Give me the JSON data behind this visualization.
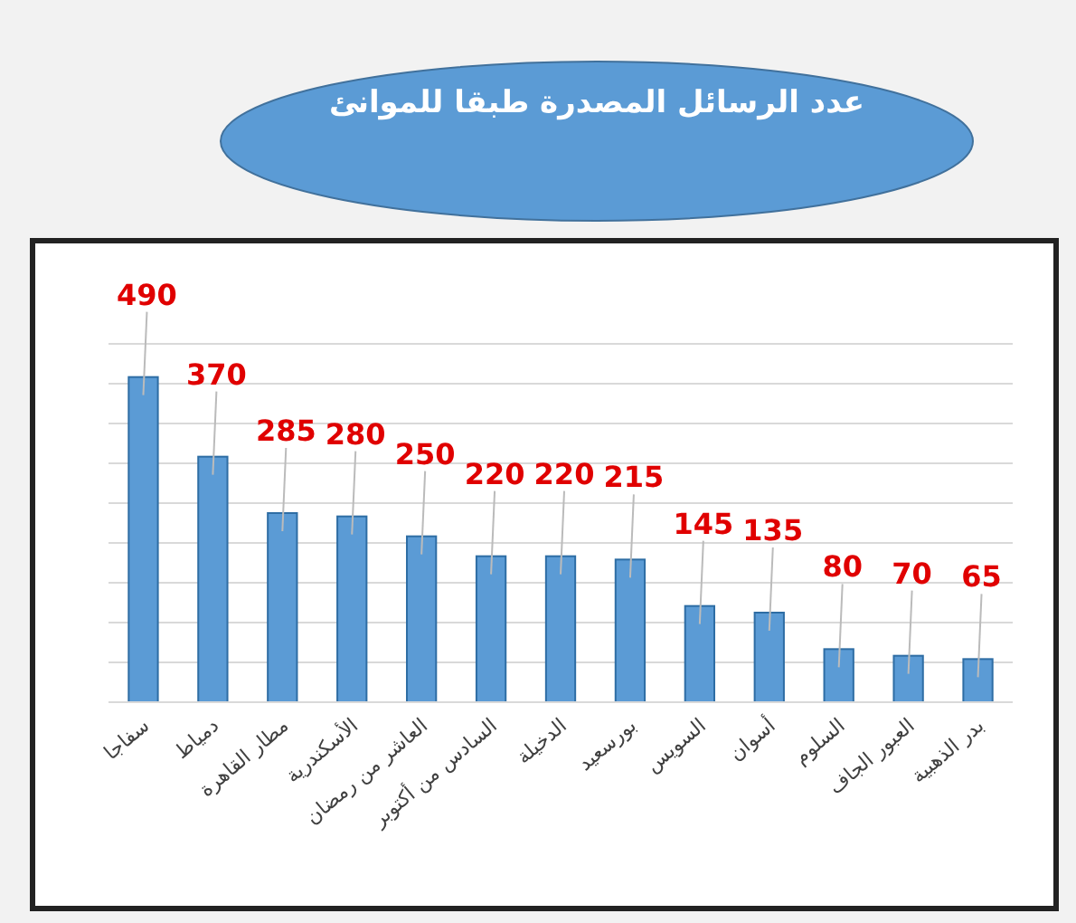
{
  "chart_data": {
    "type": "bar",
    "title": "عدد الرسائل المصدرة طبقا للموانئ",
    "categories": [
      "سفاجا",
      "دمياط",
      "مطار القاهرة",
      "الأسكندرية",
      "العاشر من رمضان",
      "السادس من أكتوبر",
      "الدخيلة",
      "بورسعيد",
      "السويس",
      "أسوان",
      "السلوم",
      "العبور الجاف",
      "بدر الذهبية"
    ],
    "values": [
      490,
      370,
      285,
      280,
      250,
      220,
      220,
      215,
      145,
      135,
      80,
      70,
      65
    ],
    "color": "#5b9bd5",
    "ylim": [
      0,
      540
    ],
    "yticks": [
      {
        "value": 0,
        "label": null
      },
      {
        "value": 60,
        "label": null
      },
      {
        "value": 120,
        "label": null
      },
      {
        "value": 180,
        "label": null
      },
      {
        "value": 240,
        "label": null
      },
      {
        "value": 300,
        "label": null
      },
      {
        "value": 360,
        "label": null
      },
      {
        "value": 420,
        "label": null
      },
      {
        "value": 480,
        "label": null
      },
      {
        "value": 540,
        "label": null
      }
    ],
    "grid": "y",
    "data_labels": true
  }
}
